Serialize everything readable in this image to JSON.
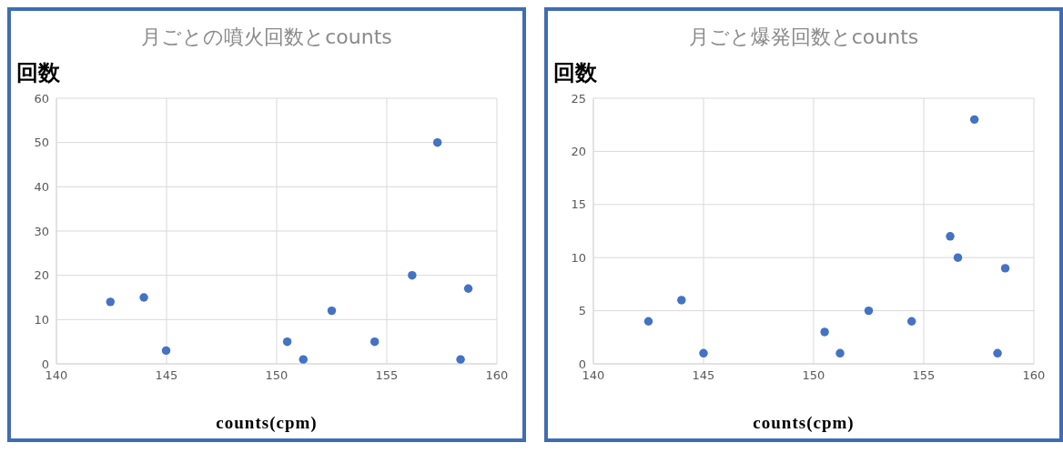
{
  "chart_data": [
    {
      "type": "scatter",
      "title": "月ごとの噴火回数とcounts",
      "xlabel": "counts(cpm)",
      "ylabel": "回数",
      "x": [
        142.45,
        143.97,
        144.98,
        150.48,
        151.21,
        152.5,
        154.45,
        156.15,
        157.3,
        158.35,
        158.7
      ],
      "series": [
        {
          "color": "#4472c4",
          "values": [
            14,
            15,
            3,
            5,
            1,
            12,
            5,
            20,
            50,
            1,
            17
          ]
        }
      ],
      "xlim": [
        140,
        160
      ],
      "xticks": [
        140,
        145,
        150,
        155,
        160
      ],
      "ylim": [
        0,
        60
      ],
      "yticks": [
        0,
        10,
        20,
        30,
        40,
        50,
        60
      ],
      "grid": true,
      "marker": "circle"
    },
    {
      "type": "scatter",
      "title": "月ごと爆発回数とcounts",
      "xlabel": "counts(cpm)",
      "ylabel": "回数",
      "x": [
        142.5,
        144.0,
        145.0,
        150.5,
        151.2,
        152.5,
        154.45,
        156.2,
        156.55,
        157.3,
        158.35,
        158.7
      ],
      "series": [
        {
          "color": "#4472c4",
          "values": [
            4,
            6,
            1,
            3,
            1,
            5,
            4,
            12,
            10,
            23,
            1,
            9
          ]
        }
      ],
      "xlim": [
        140,
        160
      ],
      "xticks": [
        140,
        145,
        150,
        155,
        160
      ],
      "ylim": [
        0,
        25
      ],
      "yticks": [
        0,
        5,
        10,
        15,
        20,
        25
      ],
      "grid": true,
      "marker": "circle"
    }
  ]
}
